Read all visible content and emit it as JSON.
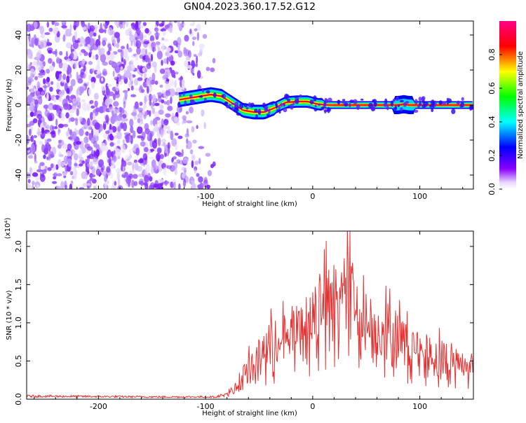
{
  "figure": {
    "title": "GN04.2023.360.17.52.G12"
  },
  "chart_data": [
    {
      "type": "heatmap",
      "xlabel": "Height of straight line (km)",
      "ylabel": "Frequency (Hz)",
      "xlim": [
        -267,
        150
      ],
      "ylim": [
        -48,
        48
      ],
      "xticks": [
        -200,
        -100,
        0,
        100
      ],
      "yticks": [
        -40,
        -20,
        0,
        20,
        40
      ],
      "colorbar": {
        "label": "Normalized spectral amplitude",
        "range": [
          0,
          1
        ],
        "ticks": [
          "0.0",
          "0.2",
          "0.4",
          "0.6",
          "0.8"
        ],
        "colors": [
          "#ffffff",
          "#8800ff",
          "#0000ff",
          "#00ffff",
          "#00ff00",
          "#ffff00",
          "#ff0000",
          "#ff0088"
        ]
      },
      "ridge": {
        "description_points_x": [
          -125,
          -110,
          -95,
          -85,
          -75,
          -65,
          -55,
          -45,
          -35,
          -25,
          -15,
          -5,
          5,
          15,
          25,
          40,
          60,
          80,
          85,
          90,
          100,
          110,
          125,
          150
        ],
        "description_points_y": [
          3,
          4.5,
          6,
          5,
          1,
          -3,
          -4,
          -4,
          -1.5,
          1.5,
          2,
          2,
          0.5,
          0,
          0,
          0,
          0,
          0,
          0.5,
          0,
          0,
          0,
          0,
          0
        ]
      },
      "noise_region_x": [
        -267,
        -100
      ]
    },
    {
      "type": "line",
      "xlabel": "Height of straight line (km)",
      "ylabel": "SNR (10 * v/v)",
      "y_multiplier": "(x10⁴)",
      "xlim": [
        -267,
        150
      ],
      "ylim": [
        0,
        2.2
      ],
      "xticks": [
        -200,
        -100,
        0,
        100
      ],
      "yticks": [
        "0.0",
        "0.5",
        "1.0",
        "1.5",
        "2.0"
      ],
      "color": "#e83030",
      "envelope_x": [
        -267,
        -150,
        -90,
        -80,
        -70,
        -60,
        -50,
        -40,
        -30,
        -20,
        -10,
        0,
        10,
        20,
        30,
        35,
        40,
        50,
        60,
        70,
        80,
        90,
        100,
        110,
        120,
        130,
        140,
        150
      ],
      "envelope_y": [
        0.04,
        0.03,
        0.03,
        0.08,
        0.25,
        0.55,
        0.75,
        0.95,
        1.05,
        1.15,
        1.2,
        1.45,
        1.65,
        1.8,
        1.95,
        2.0,
        1.55,
        1.35,
        1.2,
        1.2,
        1.1,
        0.95,
        0.85,
        0.8,
        0.75,
        0.7,
        0.6,
        0.55
      ]
    }
  ]
}
